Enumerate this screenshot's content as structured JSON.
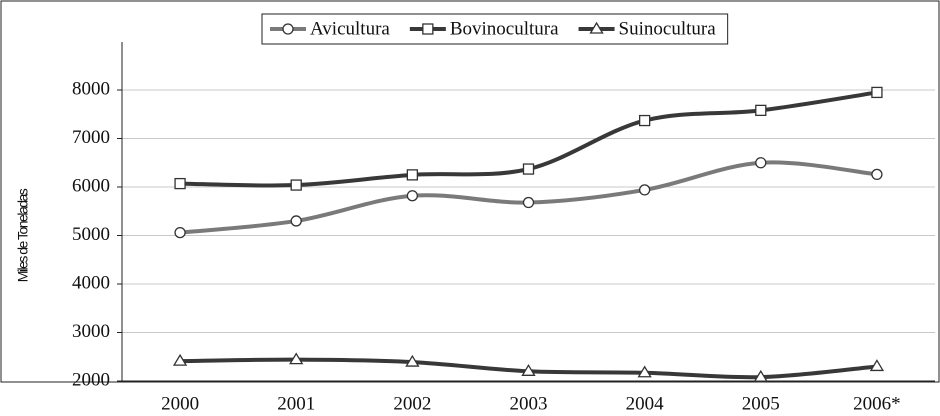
{
  "chart_data": {
    "type": "line",
    "y_label": "Miles de Toneladas",
    "categories": [
      "2000",
      "2001",
      "2002",
      "2003",
      "2004",
      "2005",
      "2006*"
    ],
    "series": [
      {
        "name": "Avicultura",
        "color": "#7a7a7a",
        "marker": "circle",
        "values": [
          5060,
          5300,
          5820,
          5680,
          5940,
          6500,
          6260
        ]
      },
      {
        "name": "Bovinocultura",
        "color": "#383838",
        "marker": "square",
        "values": [
          6070,
          6040,
          6250,
          6370,
          7370,
          7580,
          7950
        ]
      },
      {
        "name": "Suinocultura",
        "color": "#383838",
        "marker": "triangle",
        "values": [
          2410,
          2440,
          2390,
          2200,
          2170,
          2080,
          2300
        ]
      }
    ],
    "ylim": [
      2000,
      8000
    ],
    "yticks": [
      2000,
      3000,
      4000,
      5000,
      6000,
      7000,
      8000
    ],
    "grid": true,
    "legend": "top"
  }
}
